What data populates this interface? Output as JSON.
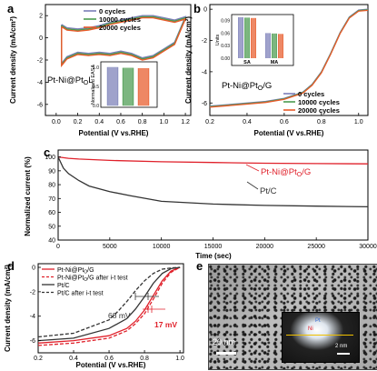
{
  "panels": {
    "a": {
      "letter": "a",
      "ylabel": "Current density (mA/cm²)",
      "xlabel": "Potential (V vs.RHE)",
      "label": "Pt-Ni@PtₒL",
      "label_text": "Pt-Ni@Pt",
      "label_sub": "O",
      "label_tail": "L",
      "inset_ylabel": "Normalized EASA",
      "inset_yticks": [
        "1.0",
        "0.5",
        "0.0"
      ],
      "xticks": [
        "0.0",
        "0.2",
        "0.4",
        "0.6",
        "0.8",
        "1.0",
        "1.2"
      ],
      "yticks": [
        "2",
        "0",
        "-2",
        "-4",
        "-6"
      ]
    },
    "b": {
      "letter": "b",
      "ylabel": "Current density (mA/cm²)",
      "xlabel": "Potential (V vs.RHE)",
      "label_text": "Pt-Ni@Pt",
      "label_sub": "O",
      "label_tail": "/G",
      "inset_ylabel": "Units",
      "inset_xlabels": [
        "SA",
        "MA"
      ],
      "inset_yticks": [
        "0.09",
        "0.06",
        "0.03",
        "0.00"
      ],
      "xticks": [
        "0.2",
        "0.4",
        "0.6",
        "0.8",
        "1.0"
      ],
      "yticks": [
        "0",
        "-2",
        "-4",
        "-6"
      ]
    },
    "c": {
      "letter": "c",
      "ylabel": "Normalized current (%)",
      "xlabel": "Time (sec)",
      "label1_text": "Pt-Ni@Pt",
      "label1_sub": "O",
      "label1_tail": "/G",
      "label2": "Pt/C",
      "xticks": [
        "0",
        "5000",
        "10000",
        "15000",
        "20000",
        "25000",
        "30000"
      ],
      "yticks": [
        "100",
        "90",
        "80",
        "70",
        "60",
        "50",
        "40"
      ]
    },
    "d": {
      "letter": "d",
      "ylabel": "Current density (mA/cm²)",
      "xlabel": "Potential (V vs.RHE)",
      "xticks": [
        "0.2",
        "0.4",
        "0.6",
        "0.8",
        "1.0"
      ],
      "yticks": [
        "0",
        "-2",
        "-4",
        "-6"
      ],
      "annot1": "68 mV",
      "annot2": "17 mV",
      "legend": [
        {
          "text": "Pt-Ni@Pt",
          "sub": "O",
          "tail": "/G",
          "color": "#e0212b",
          "dash": false
        },
        {
          "text": "Pt-Ni@Pt",
          "sub": "O",
          "tail": "/G after i-t test",
          "color": "#e0212b",
          "dash": true
        },
        {
          "text": "Pt/C",
          "sub": "",
          "tail": "",
          "color": "#333333",
          "dash": false
        },
        {
          "text": "Pt/C after i-t test",
          "sub": "",
          "tail": "",
          "color": "#333333",
          "dash": true
        }
      ]
    },
    "e": {
      "letter": "e",
      "scalebar": "20 nm",
      "inset_scalebar": "2 nm",
      "inset_label1": "Pt",
      "inset_label2": "Ni"
    }
  },
  "chart_data": [
    {
      "panel": "a",
      "type": "line",
      "xlabel": "Potential (V vs.RHE)",
      "ylabel": "Current density (mA/cm²)",
      "xlim": [
        -0.1,
        1.25
      ],
      "ylim": [
        -7,
        3
      ],
      "legend": [
        "0 cycles",
        "10000 cycles",
        "20000 cycles"
      ],
      "colors": [
        "#7b7fb8",
        "#4b9b4f",
        "#e85a2a"
      ],
      "series": [
        {
          "name": "0 cycles",
          "x": [
            0.05,
            0.1,
            0.2,
            0.3,
            0.4,
            0.5,
            0.6,
            0.7,
            0.8,
            0.9,
            1.0,
            1.1,
            1.2,
            1.1,
            1.0,
            0.9,
            0.8,
            0.7,
            0.6,
            0.5,
            0.4,
            0.3,
            0.2,
            0.1,
            0.05
          ],
          "y": [
            1.2,
            0.9,
            0.8,
            0.9,
            1.1,
            1.4,
            1.6,
            1.8,
            2.0,
            2.0,
            1.8,
            1.6,
            1.9,
            -0.4,
            -1.0,
            -1.6,
            -1.8,
            -1.4,
            -1.2,
            -1.4,
            -1.3,
            -1.4,
            -1.3,
            -1.7,
            -2.3
          ]
        },
        {
          "name": "10000 cycles",
          "x": [
            0.05,
            0.1,
            0.2,
            0.3,
            0.4,
            0.5,
            0.6,
            0.7,
            0.8,
            0.9,
            1.0,
            1.1,
            1.2,
            1.1,
            1.0,
            0.9,
            0.8,
            0.7,
            0.6,
            0.5,
            0.4,
            0.3,
            0.2,
            0.1,
            0.05
          ],
          "y": [
            1.1,
            0.8,
            0.7,
            0.8,
            1.0,
            1.3,
            1.5,
            1.7,
            1.9,
            1.9,
            1.7,
            1.5,
            1.8,
            -0.5,
            -1.1,
            -1.7,
            -1.9,
            -1.5,
            -1.3,
            -1.5,
            -1.4,
            -1.5,
            -1.4,
            -1.8,
            -2.4
          ]
        },
        {
          "name": "20000 cycles",
          "x": [
            0.05,
            0.1,
            0.2,
            0.3,
            0.4,
            0.5,
            0.6,
            0.7,
            0.8,
            0.9,
            1.0,
            1.1,
            1.2,
            1.1,
            1.0,
            0.9,
            0.8,
            0.7,
            0.6,
            0.5,
            0.4,
            0.3,
            0.2,
            0.1,
            0.05
          ],
          "y": [
            1.0,
            0.7,
            0.6,
            0.7,
            0.9,
            1.2,
            1.4,
            1.6,
            1.8,
            1.8,
            1.6,
            1.4,
            1.7,
            -0.6,
            -1.2,
            -1.8,
            -2.0,
            -1.6,
            -1.4,
            -1.6,
            -1.5,
            -1.6,
            -1.5,
            -1.9,
            -2.5
          ]
        }
      ],
      "inset": {
        "type": "bar",
        "ylabel": "Normalized EASA",
        "ylim": [
          0,
          1.0
        ],
        "values": [
          1.0,
          0.98,
          0.97
        ],
        "colors": [
          "#7b7fb8",
          "#4b9b4f",
          "#e85a2a"
        ]
      }
    },
    {
      "panel": "b",
      "type": "line",
      "xlabel": "Potential (V vs.RHE)",
      "ylabel": "Current density (mA/cm²)",
      "xlim": [
        0.2,
        1.05
      ],
      "ylim": [
        -6.8,
        0.3
      ],
      "legend": [
        "0 cycles",
        "10000 cycles",
        "20000 cycles"
      ],
      "colors": [
        "#7b7fb8",
        "#4b9b4f",
        "#e85a2a"
      ],
      "series": [
        {
          "name": "0 cycles",
          "x": [
            0.2,
            0.3,
            0.4,
            0.5,
            0.6,
            0.7,
            0.75,
            0.8,
            0.85,
            0.9,
            0.95,
            1.0,
            1.05
          ],
          "y": [
            -6.2,
            -6.1,
            -6.0,
            -5.9,
            -5.7,
            -5.3,
            -4.8,
            -4.0,
            -2.8,
            -1.5,
            -0.5,
            -0.05,
            0.0
          ]
        },
        {
          "name": "10000 cycles",
          "x": [
            0.2,
            0.3,
            0.4,
            0.5,
            0.6,
            0.7,
            0.75,
            0.8,
            0.85,
            0.9,
            0.95,
            1.0,
            1.05
          ],
          "y": [
            -6.2,
            -6.1,
            -6.0,
            -5.9,
            -5.7,
            -5.3,
            -4.8,
            -4.0,
            -2.8,
            -1.5,
            -0.5,
            -0.05,
            0.0
          ]
        },
        {
          "name": "20000 cycles",
          "x": [
            0.2,
            0.3,
            0.4,
            0.5,
            0.6,
            0.7,
            0.75,
            0.8,
            0.85,
            0.9,
            0.95,
            1.0,
            1.05
          ],
          "y": [
            -6.2,
            -6.1,
            -6.0,
            -5.9,
            -5.7,
            -5.3,
            -4.8,
            -4.0,
            -2.8,
            -1.5,
            -0.5,
            -0.05,
            0.0
          ]
        }
      ],
      "inset": {
        "type": "bar",
        "ylabel": "Units",
        "categories": [
          "SA",
          "MA"
        ],
        "ylim": [
          0,
          0.1
        ],
        "series": [
          {
            "name": "0 cycles",
            "values": [
              0.098,
              0.06
            ]
          },
          {
            "name": "10000 cycles",
            "values": [
              0.097,
              0.059
            ]
          },
          {
            "name": "20000 cycles",
            "values": [
              0.096,
              0.058
            ]
          }
        ]
      }
    },
    {
      "panel": "c",
      "type": "line",
      "xlabel": "Time (sec)",
      "ylabel": "Normalized current (%)",
      "xlim": [
        0,
        30000
      ],
      "ylim": [
        40,
        105
      ],
      "series": [
        {
          "name": "Pt-Ni@PtO/G",
          "color": "#e0212b",
          "x": [
            0,
            1000,
            2000,
            5000,
            10000,
            15000,
            20000,
            25000,
            30000
          ],
          "y": [
            100,
            99,
            98.5,
            97.5,
            96.5,
            96,
            95.5,
            95.2,
            95
          ]
        },
        {
          "name": "Pt/C",
          "color": "#333333",
          "x": [
            0,
            500,
            1000,
            2000,
            3000,
            5000,
            7000,
            10000,
            15000,
            20000,
            25000,
            30000
          ],
          "y": [
            100,
            92,
            88,
            83,
            79,
            75,
            72,
            68,
            66,
            65,
            64.5,
            64
          ]
        }
      ]
    },
    {
      "panel": "d",
      "type": "line",
      "xlabel": "Potential (V vs.RHE)",
      "ylabel": "Current density (mA/cm²)",
      "xlim": [
        0.2,
        1.02
      ],
      "ylim": [
        -7,
        0.3
      ],
      "series": [
        {
          "name": "Pt-Ni@PtO/G",
          "color": "#e0212b",
          "dash": false,
          "x": [
            0.2,
            0.4,
            0.6,
            0.7,
            0.75,
            0.8,
            0.85,
            0.9,
            0.95,
            1.0
          ],
          "y": [
            -6.2,
            -6.0,
            -5.6,
            -5.0,
            -4.4,
            -3.5,
            -2.3,
            -1.1,
            -0.3,
            0.0
          ]
        },
        {
          "name": "Pt-Ni@PtO/G after i-t test",
          "color": "#e0212b",
          "dash": true,
          "x": [
            0.2,
            0.4,
            0.6,
            0.7,
            0.75,
            0.8,
            0.85,
            0.9,
            0.95,
            1.0
          ],
          "y": [
            -6.4,
            -6.2,
            -5.8,
            -5.2,
            -4.6,
            -3.8,
            -2.6,
            -1.3,
            -0.4,
            0.0
          ]
        },
        {
          "name": "Pt/C",
          "color": "#333333",
          "dash": false,
          "x": [
            0.2,
            0.4,
            0.6,
            0.7,
            0.75,
            0.8,
            0.85,
            0.9,
            0.95,
            1.0
          ],
          "y": [
            -6.0,
            -5.8,
            -5.0,
            -4.2,
            -3.4,
            -2.4,
            -1.3,
            -0.5,
            -0.1,
            0.0
          ]
        },
        {
          "name": "Pt/C after i-t test",
          "color": "#333333",
          "dash": true,
          "x": [
            0.2,
            0.4,
            0.6,
            0.65,
            0.7,
            0.75,
            0.8,
            0.85,
            0.9,
            0.95,
            1.0
          ],
          "y": [
            -5.7,
            -5.4,
            -4.3,
            -3.6,
            -2.8,
            -1.9,
            -1.1,
            -0.5,
            -0.15,
            -0.05,
            0.0
          ]
        }
      ],
      "annotations": [
        "68 mV",
        "17 mV"
      ]
    }
  ]
}
